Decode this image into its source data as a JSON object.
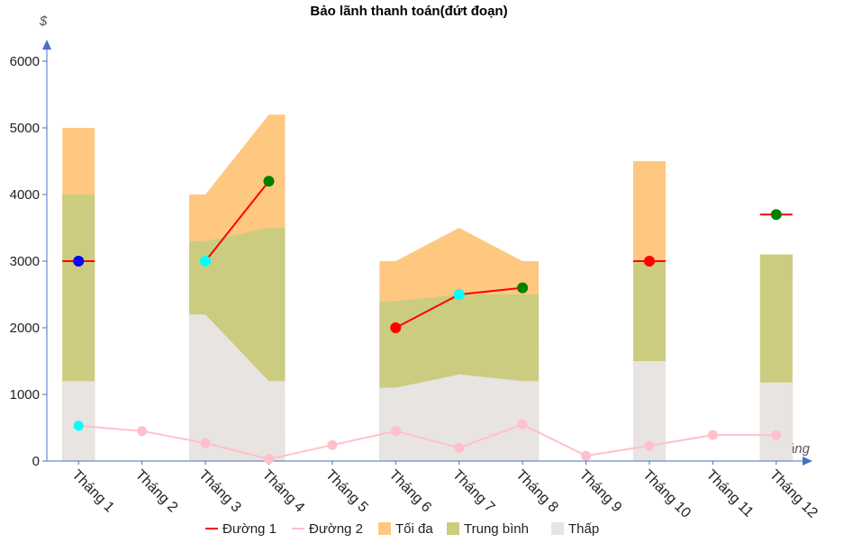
{
  "chart_data": {
    "type": "area",
    "title": "Bảo lãnh thanh toán(đứt đoạn)",
    "ylabel": "$",
    "xlabel": "Tháng",
    "ylim": [
      0,
      6000
    ],
    "yticks": [
      0,
      1000,
      2000,
      3000,
      4000,
      5000,
      6000
    ],
    "categories": [
      "Tháng 1",
      "Tháng 2",
      "Tháng 3",
      "Tháng 4",
      "Tháng 5",
      "Tháng 6",
      "Tháng 7",
      "Tháng 8",
      "Tháng 9",
      "Tháng 10",
      "Tháng 11",
      "Tháng 12"
    ],
    "legend_position": "bottom",
    "series": [
      {
        "name": "Đường 1",
        "kind": "line",
        "color": "#ff0000",
        "values": [
          3000,
          null,
          3000,
          4200,
          null,
          2000,
          2500,
          2600,
          null,
          3000,
          null,
          3700
        ],
        "marker_colors": [
          "#0000ff",
          null,
          "#00ffff",
          "#008000",
          null,
          "#ff0000",
          "#00ffff",
          "#008000",
          null,
          "#ff0000",
          null,
          "#008000"
        ]
      },
      {
        "name": "Đường 2",
        "kind": "line",
        "color": "#ffc0cb",
        "values": [
          530,
          450,
          270,
          30,
          240,
          450,
          200,
          550,
          80,
          230,
          390,
          390
        ],
        "marker_colors": [
          "#00ffff",
          null,
          null,
          null,
          null,
          null,
          null,
          null,
          null,
          null,
          null,
          null
        ]
      },
      {
        "name": "Tối đa",
        "kind": "area",
        "color": "#ffc880",
        "values": [
          5000,
          null,
          4000,
          5200,
          null,
          3000,
          3500,
          3000,
          null,
          4500,
          null,
          3100
        ]
      },
      {
        "name": "Trung bình",
        "kind": "area",
        "color": "#cccc80",
        "values": [
          4000,
          null,
          3300,
          3500,
          null,
          2400,
          2500,
          2500,
          null,
          3000,
          null,
          3100
        ]
      },
      {
        "name": "Thấp",
        "kind": "area",
        "color": "#e8e4e2",
        "values": [
          1200,
          null,
          2200,
          1200,
          null,
          1100,
          1300,
          1200,
          null,
          1500,
          null,
          1180
        ]
      }
    ]
  }
}
